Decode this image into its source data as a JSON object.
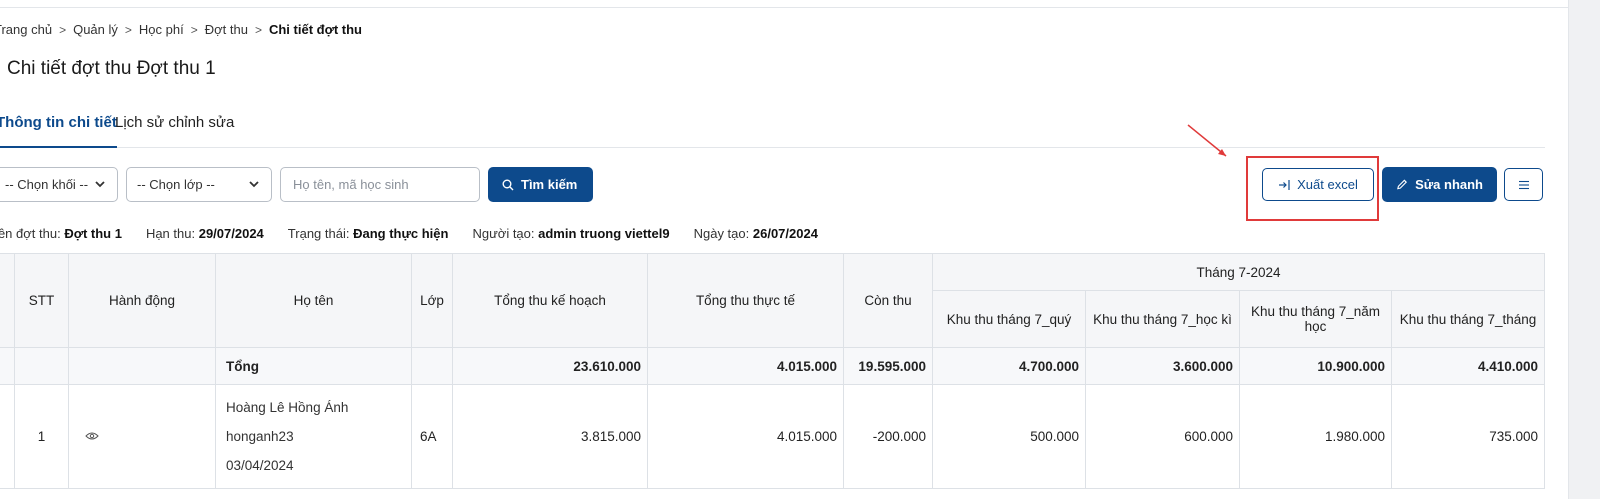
{
  "breadcrumb": {
    "items": [
      "Trang chủ",
      "Quản lý",
      "Học phí",
      "Đợt thu"
    ],
    "current": "Chi tiết đợt thu"
  },
  "page_title": "Chi tiết đợt thu Đợt thu 1",
  "tabs": [
    {
      "label": "Thông tin chi tiết",
      "active": true
    },
    {
      "label": "Lịch sử chỉnh sửa",
      "active": false
    }
  ],
  "filters": {
    "grade_select": "-- Chọn khối --",
    "class_select": "-- Chọn lớp --",
    "search_placeholder": "Họ tên, mã học sinh",
    "search_button": "Tìm kiếm"
  },
  "actions": {
    "export_excel": "Xuất excel",
    "quick_edit": "Sửa nhanh"
  },
  "info": {
    "batch_label": "Tên đợt thu:",
    "batch_value": "Đợt thu 1",
    "deadline_label": "Hạn thu:",
    "deadline_value": "29/07/2024",
    "status_label": "Trạng thái:",
    "status_value": "Đang thực hiện",
    "creator_label": "Người tạo:",
    "creator_value": "admin truong viettel9",
    "created_label": "Ngày tạo:",
    "created_value": "26/07/2024"
  },
  "table": {
    "headers": {
      "stt": "STT",
      "action": "Hành động",
      "name": "Họ tên",
      "class": "Lớp",
      "planned": "Tổng thu kế hoạch",
      "actual": "Tổng thu thực tế",
      "remaining": "Còn thu",
      "group": "Tháng 7-2024",
      "sub1": "Khu thu tháng 7_quý",
      "sub2": "Khu thu tháng 7_học kì",
      "sub3": "Khu thu tháng 7_năm học",
      "sub4": "Khu thu tháng 7_tháng"
    },
    "total_row": {
      "label": "Tổng",
      "planned": "23.610.000",
      "actual": "4.015.000",
      "remaining": "19.595.000",
      "sub1": "4.700.000",
      "sub2": "3.600.000",
      "sub3": "10.900.000",
      "sub4": "4.410.000"
    },
    "rows": [
      {
        "stt": "1",
        "name": "Hoàng Lê Hồng Ánh",
        "username": "honganh23",
        "dob": "03/04/2024",
        "class": "6A",
        "planned": "3.815.000",
        "actual": "4.015.000",
        "remaining": "-200.000",
        "sub1": "500.000",
        "sub2": "600.000",
        "sub3": "1.980.000",
        "sub4": "735.000"
      }
    ]
  },
  "colors": {
    "primary": "#0d4a8c",
    "highlight": "#e03a3a"
  }
}
